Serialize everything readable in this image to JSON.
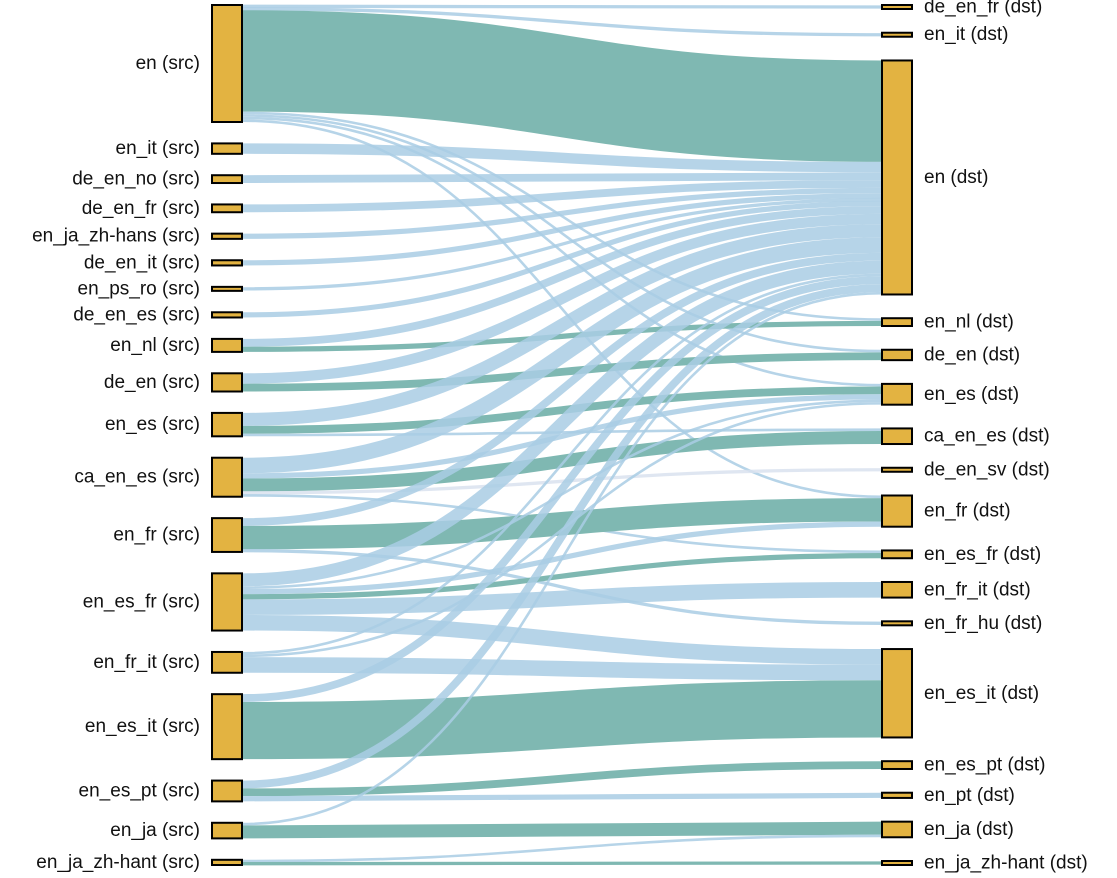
{
  "chart_data": {
    "type": "sankey",
    "title": "",
    "colors": {
      "node_fill": "#E3B341",
      "node_stroke": "#000000",
      "same_language_flow": "#7FB8B2",
      "cross_flow": "#A9CDE4",
      "faint_flow": "#D9E2EE"
    },
    "sources": [
      {
        "id": "en",
        "label": "en (src)"
      },
      {
        "id": "en_it",
        "label": "en_it (src)"
      },
      {
        "id": "de_en_no",
        "label": "de_en_no (src)"
      },
      {
        "id": "de_en_fr",
        "label": "de_en_fr (src)"
      },
      {
        "id": "en_ja_zh-hans",
        "label": "en_ja_zh-hans (src)"
      },
      {
        "id": "de_en_it",
        "label": "de_en_it (src)"
      },
      {
        "id": "en_ps_ro",
        "label": "en_ps_ro (src)"
      },
      {
        "id": "de_en_es",
        "label": "de_en_es (src)"
      },
      {
        "id": "en_nl",
        "label": "en_nl (src)"
      },
      {
        "id": "de_en",
        "label": "de_en (src)"
      },
      {
        "id": "en_es",
        "label": "en_es (src)"
      },
      {
        "id": "ca_en_es",
        "label": "ca_en_es (src)"
      },
      {
        "id": "en_fr",
        "label": "en_fr (src)"
      },
      {
        "id": "en_es_fr",
        "label": "en_es_fr (src)"
      },
      {
        "id": "en_fr_it",
        "label": "en_fr_it (src)"
      },
      {
        "id": "en_es_it",
        "label": "en_es_it (src)"
      },
      {
        "id": "en_es_pt",
        "label": "en_es_pt (src)"
      },
      {
        "id": "en_ja",
        "label": "en_ja (src)"
      },
      {
        "id": "en_ja_zh-hant",
        "label": "en_ja_zh-hant (src)"
      }
    ],
    "targets": [
      {
        "id": "de_en_fr",
        "label": "de_en_fr (dst)"
      },
      {
        "id": "en_it",
        "label": "en_it (dst)"
      },
      {
        "id": "en",
        "label": "en (dst)"
      },
      {
        "id": "en_nl",
        "label": "en_nl (dst)"
      },
      {
        "id": "de_en",
        "label": "de_en (dst)"
      },
      {
        "id": "en_es",
        "label": "en_es (dst)"
      },
      {
        "id": "ca_en_es",
        "label": "ca_en_es (dst)"
      },
      {
        "id": "de_en_sv",
        "label": "de_en_sv (dst)"
      },
      {
        "id": "en_fr",
        "label": "en_fr (dst)"
      },
      {
        "id": "en_es_fr",
        "label": "en_es_fr (dst)"
      },
      {
        "id": "en_fr_it",
        "label": "en_fr_it (dst)"
      },
      {
        "id": "en_fr_hu",
        "label": "en_fr_hu (dst)"
      },
      {
        "id": "en_es_it",
        "label": "en_es_it (dst)"
      },
      {
        "id": "en_es_pt",
        "label": "en_es_pt (dst)"
      },
      {
        "id": "en_pt",
        "label": "en_pt (dst)"
      },
      {
        "id": "en_ja",
        "label": "en_ja (dst)"
      },
      {
        "id": "en_ja_zh-hant",
        "label": "en_ja_zh-hant (dst)"
      }
    ],
    "links": [
      {
        "source": "en",
        "target": "de_en_fr",
        "value": 1,
        "kind": "cross"
      },
      {
        "source": "en",
        "target": "en_it",
        "value": 1,
        "kind": "cross"
      },
      {
        "source": "en",
        "target": "en",
        "value": 39,
        "kind": "same"
      },
      {
        "source": "en",
        "target": "en_nl",
        "value": 1,
        "kind": "cross"
      },
      {
        "source": "en",
        "target": "de_en",
        "value": 1,
        "kind": "cross"
      },
      {
        "source": "en",
        "target": "en_es",
        "value": 1,
        "kind": "cross"
      },
      {
        "source": "en",
        "target": "en_fr",
        "value": 1,
        "kind": "cross"
      },
      {
        "source": "en_it",
        "target": "en",
        "value": 4,
        "kind": "cross"
      },
      {
        "source": "de_en_no",
        "target": "en",
        "value": 3,
        "kind": "cross"
      },
      {
        "source": "de_en_fr",
        "target": "en",
        "value": 3,
        "kind": "cross"
      },
      {
        "source": "en_ja_zh-hans",
        "target": "en",
        "value": 2,
        "kind": "cross"
      },
      {
        "source": "de_en_it",
        "target": "en",
        "value": 2,
        "kind": "cross"
      },
      {
        "source": "en_ps_ro",
        "target": "en",
        "value": 1,
        "kind": "cross"
      },
      {
        "source": "de_en_es",
        "target": "en",
        "value": 2,
        "kind": "cross"
      },
      {
        "source": "en_nl",
        "target": "en",
        "value": 3,
        "kind": "cross"
      },
      {
        "source": "en_nl",
        "target": "en_nl",
        "value": 2,
        "kind": "same"
      },
      {
        "source": "de_en",
        "target": "en",
        "value": 4,
        "kind": "cross"
      },
      {
        "source": "de_en",
        "target": "de_en",
        "value": 3,
        "kind": "same"
      },
      {
        "source": "en_es",
        "target": "en",
        "value": 5,
        "kind": "cross"
      },
      {
        "source": "en_es",
        "target": "en_es",
        "value": 3,
        "kind": "same"
      },
      {
        "source": "en_es",
        "target": "ca_en_es",
        "value": 1,
        "kind": "cross"
      },
      {
        "source": "ca_en_es",
        "target": "en",
        "value": 6,
        "kind": "cross"
      },
      {
        "source": "ca_en_es",
        "target": "en_es",
        "value": 2,
        "kind": "cross"
      },
      {
        "source": "ca_en_es",
        "target": "ca_en_es",
        "value": 5,
        "kind": "same"
      },
      {
        "source": "ca_en_es",
        "target": "de_en_sv",
        "value": 1,
        "kind": "faint"
      },
      {
        "source": "ca_en_es",
        "target": "en_es_fr",
        "value": 1,
        "kind": "cross"
      },
      {
        "source": "en_fr",
        "target": "en",
        "value": 3,
        "kind": "cross"
      },
      {
        "source": "en_fr",
        "target": "en_fr",
        "value": 9,
        "kind": "same"
      },
      {
        "source": "en_fr",
        "target": "en_fr_hu",
        "value": 1,
        "kind": "cross"
      },
      {
        "source": "en_es_fr",
        "target": "en",
        "value": 5,
        "kind": "cross"
      },
      {
        "source": "en_es_fr",
        "target": "en_es",
        "value": 1,
        "kind": "cross"
      },
      {
        "source": "en_es_fr",
        "target": "en_fr",
        "value": 2,
        "kind": "cross"
      },
      {
        "source": "en_es_fr",
        "target": "en_es_fr",
        "value": 2,
        "kind": "same"
      },
      {
        "source": "en_es_fr",
        "target": "en_fr_it",
        "value": 6,
        "kind": "cross"
      },
      {
        "source": "en_es_fr",
        "target": "en_es_it",
        "value": 6,
        "kind": "cross"
      },
      {
        "source": "en_fr_it",
        "target": "en",
        "value": 1,
        "kind": "cross"
      },
      {
        "source": "en_fr_it",
        "target": "en_es",
        "value": 1,
        "kind": "cross"
      },
      {
        "source": "en_fr_it",
        "target": "en_es_it",
        "value": 6,
        "kind": "cross"
      },
      {
        "source": "en_es_it",
        "target": "en",
        "value": 3,
        "kind": "cross"
      },
      {
        "source": "en_es_it",
        "target": "en_es_it",
        "value": 22,
        "kind": "same"
      },
      {
        "source": "en_es_pt",
        "target": "en",
        "value": 3,
        "kind": "cross"
      },
      {
        "source": "en_es_pt",
        "target": "en_es_pt",
        "value": 3,
        "kind": "same"
      },
      {
        "source": "en_es_pt",
        "target": "en_pt",
        "value": 2,
        "kind": "cross"
      },
      {
        "source": "en_ja",
        "target": "en_ja",
        "value": 5,
        "kind": "same"
      },
      {
        "source": "en_ja",
        "target": "en",
        "value": 1,
        "kind": "cross"
      },
      {
        "source": "en_ja_zh-hant",
        "target": "en_ja",
        "value": 1,
        "kind": "cross"
      },
      {
        "source": "en_ja_zh-hant",
        "target": "en_ja_zh-hant",
        "value": 1,
        "kind": "same"
      }
    ]
  }
}
